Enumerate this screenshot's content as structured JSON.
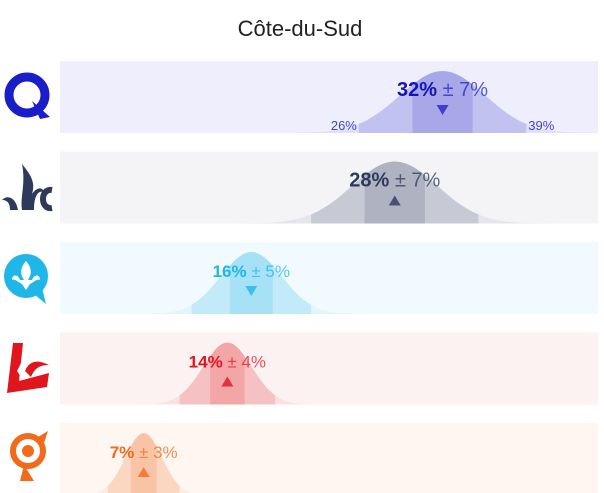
{
  "chart_data": {
    "type": "area",
    "title": "Côte-du-Sud",
    "xlim": [
      0,
      45
    ],
    "series": [
      {
        "name": "Coalition avenir Québec",
        "icon": "caq-q-logo-icon",
        "value": 32,
        "moe": 7,
        "low_label": "26%",
        "high_label": "39%",
        "trend": "down",
        "color": "#2424c8",
        "bg": "#eeeefc"
      },
      {
        "name": "Parti conservateur du Québec",
        "icon": "pcq-fleur-de-lis-icon",
        "value": 28,
        "moe": 7,
        "trend": "up",
        "color": "#2e3a5c",
        "bg": "#f4f4f7"
      },
      {
        "name": "Parti québécois",
        "icon": "pq-fleur-de-lis-bubble-icon",
        "value": 16,
        "moe": 5,
        "trend": "down",
        "color": "#1fb6e8",
        "bg": "#f1fafe"
      },
      {
        "name": "Parti libéral du Québec",
        "icon": "plq-l-logo-icon",
        "value": 14,
        "moe": 4,
        "trend": "up",
        "color": "#e0161e",
        "bg": "#fdf2f2"
      },
      {
        "name": "Québec solidaire",
        "icon": "qs-logo-icon",
        "value": 7,
        "moe": 3,
        "trend": "up",
        "color": "#f26a1b",
        "bg": "#fef6f1"
      }
    ]
  }
}
